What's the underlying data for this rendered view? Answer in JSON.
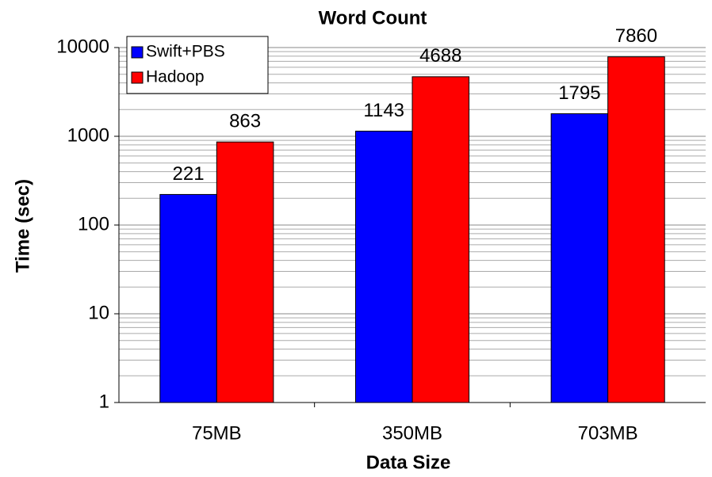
{
  "chart_data": {
    "type": "bar",
    "title": "Word Count",
    "xlabel": "Data Size",
    "ylabel": "Time (sec)",
    "categories": [
      "75MB",
      "350MB",
      "703MB"
    ],
    "series": [
      {
        "name": "Swift+PBS",
        "color": "#0000ff",
        "values": [
          221,
          1143,
          1795
        ]
      },
      {
        "name": "Hadoop",
        "color": "#ff0000",
        "values": [
          863,
          4688,
          7860
        ]
      }
    ],
    "ylim": [
      1,
      10000
    ],
    "yticks": [
      1,
      10,
      100,
      1000,
      10000
    ],
    "log_scale": true,
    "grid": true,
    "minor_grid": true,
    "legend": "upper left"
  }
}
